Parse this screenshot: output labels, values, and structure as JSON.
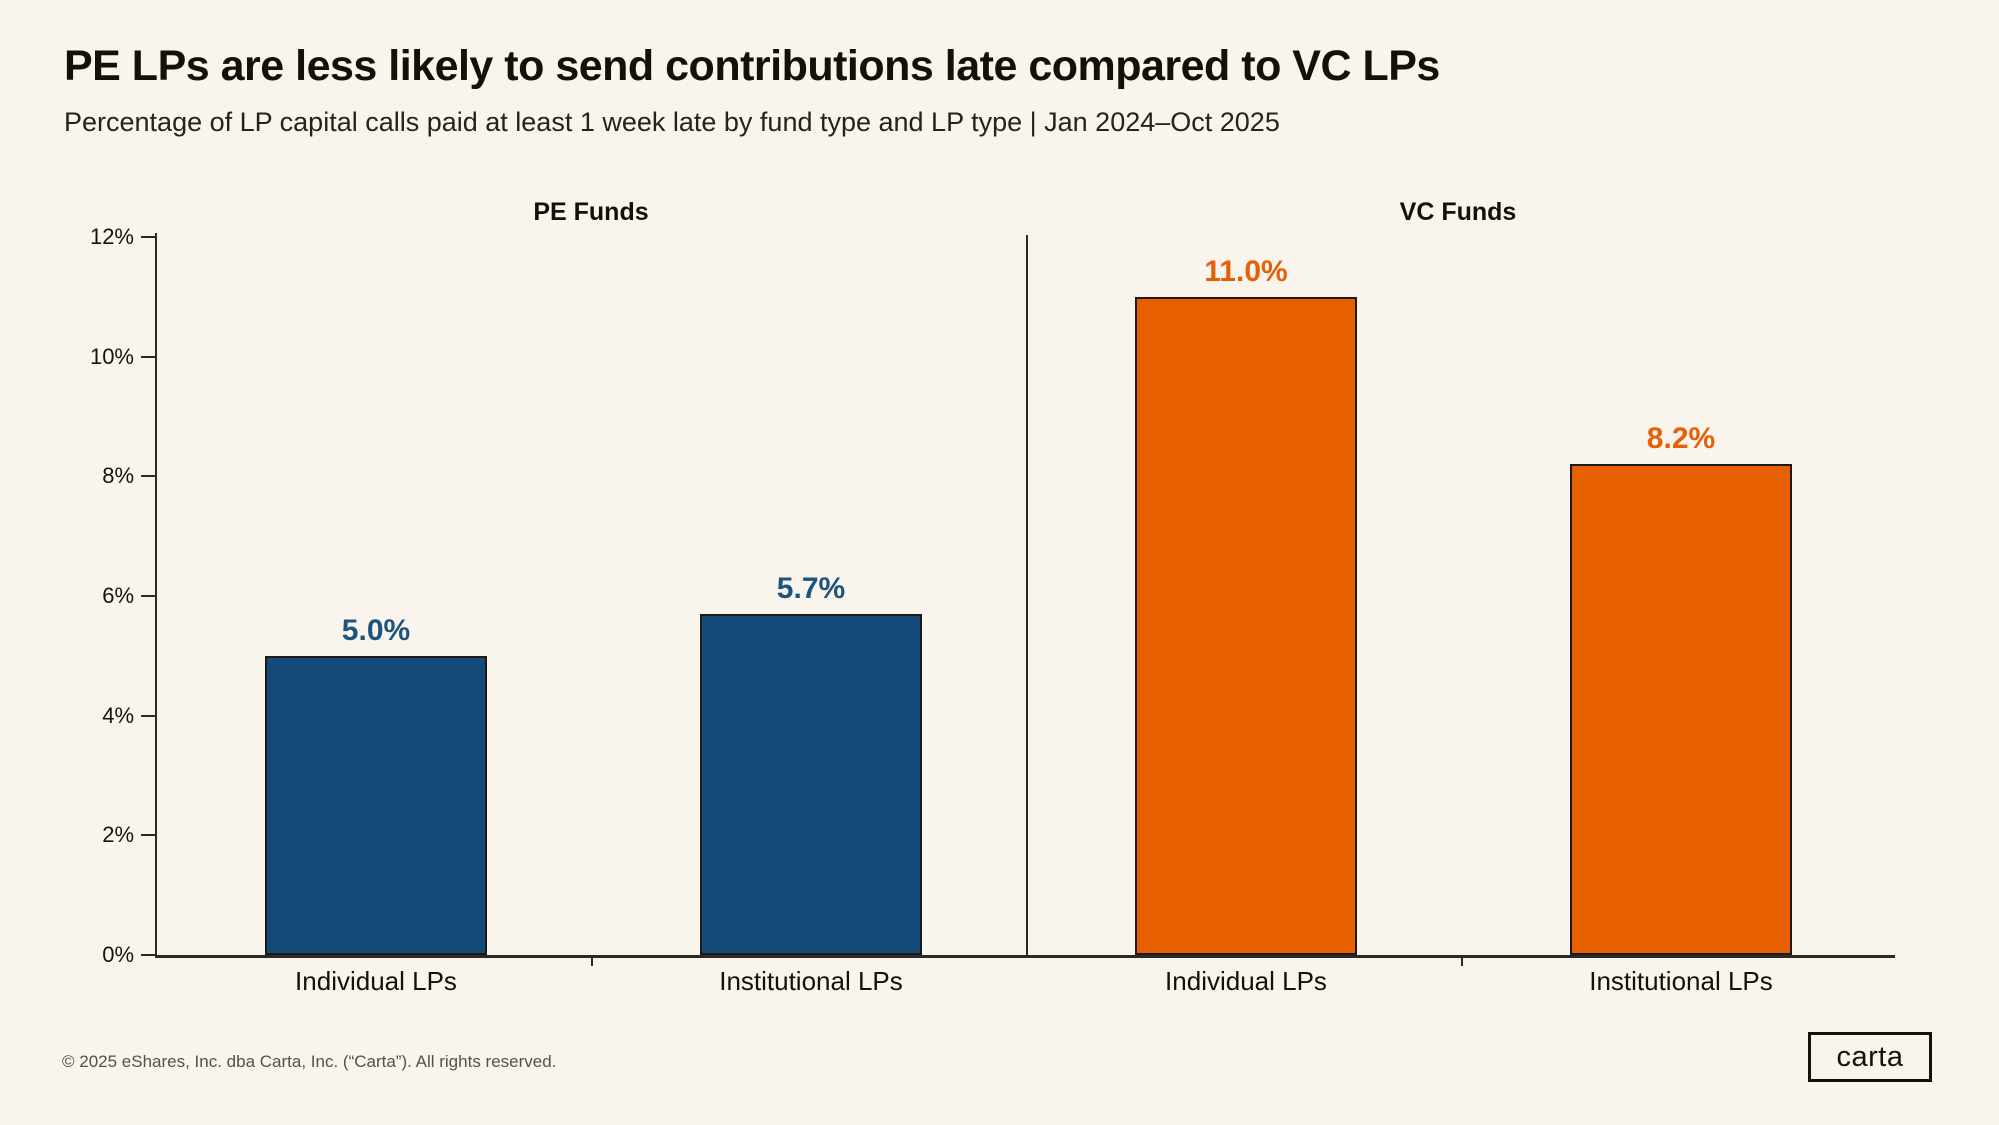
{
  "header": {
    "title": "PE LPs are less likely to send contributions late compared to VC LPs",
    "subtitle": "Percentage of LP capital calls paid at least 1 week late by fund type and LP type | Jan 2024–Oct 2025"
  },
  "chart_data": {
    "type": "bar",
    "title": "PE LPs are less likely to send contributions late compared to VC LPs",
    "subtitle": "Percentage of LP capital calls paid at least 1 week late by fund type and LP type | Jan 2024–Oct 2025",
    "categories": [
      "Individual LPs",
      "Institutional LPs"
    ],
    "panels": [
      {
        "title": "PE Funds",
        "color": "#144B78",
        "label_color": "#1D547F",
        "categories": [
          "Individual LPs",
          "Institutional LPs"
        ],
        "values": [
          5.0,
          5.7
        ],
        "value_labels": [
          "5.0%",
          "5.7%"
        ]
      },
      {
        "title": "VC Funds",
        "color": "#E66000",
        "label_color": "#E4610A",
        "categories": [
          "Individual LPs",
          "Institutional LPs"
        ],
        "values": [
          11.0,
          8.2
        ],
        "value_labels": [
          "11.0%",
          "8.2%"
        ]
      }
    ],
    "ylim": [
      0,
      12
    ],
    "yticks": [
      "0%",
      "2%",
      "4%",
      "6%",
      "8%",
      "10%",
      "12%"
    ],
    "xlabel": "",
    "ylabel": "",
    "grid": false,
    "legend_position": "none",
    "bar_value_labels": true
  },
  "colors": {
    "background": "#F9F4EC",
    "pe_blue": "#144B78",
    "vc_orange": "#E66000",
    "axis": "#2B2926",
    "text": "#14110C",
    "muted_text": "#55514B"
  },
  "footer": {
    "copyright": "© 2025 eShares, Inc. dba Carta, Inc. (“Carta”). All rights reserved."
  },
  "logo": {
    "label": "carta"
  }
}
